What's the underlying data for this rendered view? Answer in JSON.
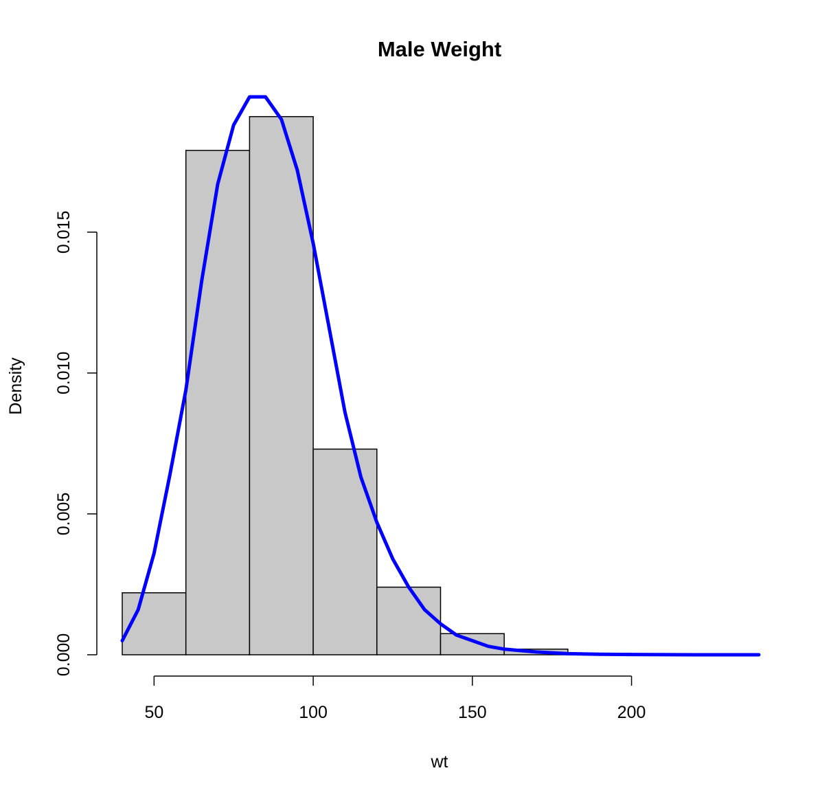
{
  "chart_data": {
    "type": "histogram",
    "title": "Male Weight",
    "xlabel": "wt",
    "ylabel": "Density",
    "bin_edges": [
      40,
      60,
      80,
      100,
      120,
      140,
      160,
      180,
      200
    ],
    "values": [
      0.0022,
      0.0179,
      0.0191,
      0.0073,
      0.0024,
      0.00075,
      0.0002,
      5e-05
    ],
    "x_ticks": [
      50,
      100,
      150,
      200
    ],
    "x_tick_labels": [
      "50",
      "100",
      "150",
      "200"
    ],
    "y_ticks": [
      0,
      0.005,
      0.01,
      0.015
    ],
    "y_tick_labels": [
      "0.000",
      "0.005",
      "0.010",
      "0.015"
    ],
    "xlim": [
      40,
      240
    ],
    "ylim": [
      0,
      0.0198
    ],
    "grid": false,
    "series": [
      {
        "type": "line",
        "x": [
          40,
          45,
          50,
          55,
          60,
          65,
          70,
          75,
          80,
          85,
          90,
          95,
          100,
          105,
          110,
          115,
          120,
          125,
          130,
          135,
          140,
          145,
          150,
          155,
          160,
          170,
          180,
          190,
          200,
          220,
          240
        ],
        "values": [
          0.0005,
          0.0016,
          0.0036,
          0.0064,
          0.0094,
          0.0133,
          0.0167,
          0.0188,
          0.0198,
          0.0198,
          0.019,
          0.0172,
          0.0146,
          0.0116,
          0.0086,
          0.0063,
          0.0047,
          0.0034,
          0.0024,
          0.0016,
          0.0011,
          0.0007,
          0.0005,
          0.0003,
          0.0002,
          0.0001,
          4e-05,
          2e-05,
          1e-05,
          0,
          0
        ],
        "color": "#0000ff"
      }
    ],
    "bar_fill": "#c8c8c8",
    "bar_stroke": "#000000"
  }
}
